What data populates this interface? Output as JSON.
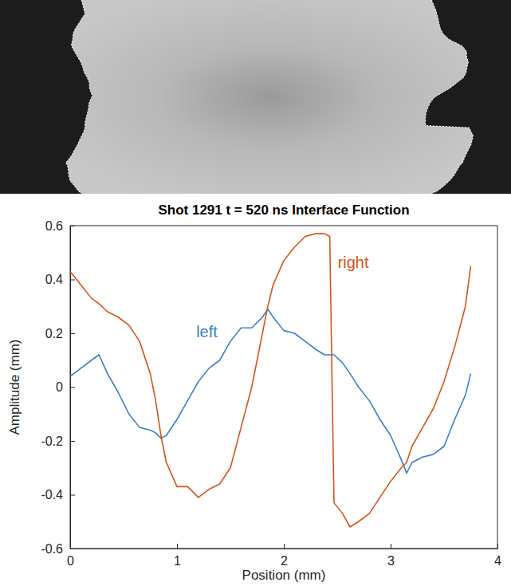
{
  "chart_data": {
    "type": "line",
    "title": "Shot 1291 t = 520 ns Interface Function",
    "x_label": "Position (mm)",
    "y_label": "Amplitude (mm)",
    "x": [
      0,
      0.1,
      0.2,
      0.27,
      0.35,
      0.45,
      0.55,
      0.65,
      0.75,
      0.8,
      0.85,
      0.9,
      1.0,
      1.1,
      1.2,
      1.3,
      1.4,
      1.5,
      1.6,
      1.7,
      1.8,
      1.85,
      1.9,
      2.0,
      2.1,
      2.2,
      2.3,
      2.38,
      2.43,
      2.47,
      2.55,
      2.62,
      2.7,
      2.8,
      2.9,
      3.0,
      3.1,
      3.15,
      3.2,
      3.3,
      3.4,
      3.5,
      3.6,
      3.7,
      3.75
    ],
    "series": [
      {
        "name": "left",
        "color": "#3b7fcb",
        "label": {
          "x": 1.28,
          "y": 0.2
        },
        "values": [
          0.04,
          0.07,
          0.1,
          0.12,
          0.05,
          -0.02,
          -0.1,
          -0.15,
          -0.16,
          -0.17,
          -0.19,
          -0.18,
          -0.12,
          -0.05,
          0.02,
          0.07,
          0.1,
          0.17,
          0.22,
          0.22,
          0.26,
          0.29,
          0.26,
          0.21,
          0.2,
          0.17,
          0.14,
          0.12,
          0.12,
          0.12,
          0.09,
          0.05,
          0.0,
          -0.05,
          -0.12,
          -0.18,
          -0.27,
          -0.32,
          -0.28,
          -0.26,
          -0.25,
          -0.22,
          -0.12,
          -0.03,
          0.05
        ]
      },
      {
        "name": "right",
        "color": "#d95319",
        "label": {
          "x": 2.65,
          "y": 0.46
        },
        "values": [
          0.43,
          0.38,
          0.33,
          0.31,
          0.28,
          0.26,
          0.23,
          0.17,
          0.05,
          -0.05,
          -0.18,
          -0.28,
          -0.37,
          -0.37,
          -0.41,
          -0.38,
          -0.36,
          -0.3,
          -0.15,
          0.0,
          0.2,
          0.3,
          0.38,
          0.47,
          0.52,
          0.56,
          0.57,
          0.57,
          0.56,
          -0.43,
          -0.47,
          -0.52,
          -0.5,
          -0.47,
          -0.41,
          -0.35,
          -0.3,
          -0.28,
          -0.22,
          -0.15,
          -0.08,
          0.02,
          0.15,
          0.3,
          0.45
        ]
      }
    ],
    "xlim": [
      0,
      4
    ],
    "ylim": [
      -0.6,
      0.6
    ],
    "xticks": [
      0,
      1,
      2,
      3,
      4
    ],
    "yticks": [
      -0.6,
      -0.4,
      -0.2,
      0,
      0.2,
      0.4,
      0.6
    ],
    "grid": false
  }
}
